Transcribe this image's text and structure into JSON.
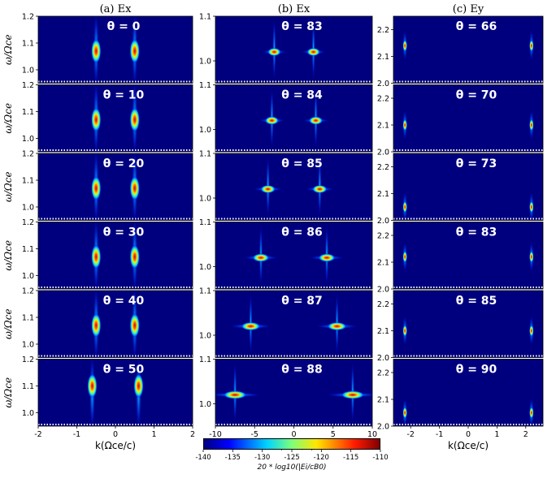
{
  "colors": {
    "background": "#00007f",
    "hot": "#b0101a"
  },
  "colorbar": {
    "ticks": [
      "-140",
      "-135",
      "-130",
      "-125",
      "-120",
      "-115",
      "-110"
    ],
    "label": "20 * log10(|Ei/cB0)"
  },
  "chart_data": [
    {
      "type": "heatmap",
      "title": "(a) Ex",
      "xlabel": "k(Ωce/c)",
      "ylabel": "ω/Ωce",
      "xlim": [
        -2,
        2
      ],
      "ylim": [
        0.95,
        1.2
      ],
      "xticks": [
        "-2",
        "-1",
        "0",
        "1",
        "2"
      ],
      "yticks": [
        "1.0",
        "1.1",
        "1.2"
      ],
      "ytick_values": [
        1.0,
        1.1,
        1.2
      ],
      "panels": [
        {
          "theta": "0",
          "label": "θ = 0",
          "peaks": [
            {
              "k": -0.5,
              "omega": 1.07
            },
            {
              "k": 0.5,
              "omega": 1.07
            }
          ]
        },
        {
          "theta": "10",
          "label": "θ = 10",
          "peaks": [
            {
              "k": -0.5,
              "omega": 1.07
            },
            {
              "k": 0.5,
              "omega": 1.07
            }
          ]
        },
        {
          "theta": "20",
          "label": "θ = 20",
          "peaks": [
            {
              "k": -0.5,
              "omega": 1.07
            },
            {
              "k": 0.5,
              "omega": 1.07
            }
          ]
        },
        {
          "theta": "30",
          "label": "θ = 30",
          "peaks": [
            {
              "k": -0.5,
              "omega": 1.07
            },
            {
              "k": 0.5,
              "omega": 1.07
            }
          ]
        },
        {
          "theta": "40",
          "label": "θ = 40",
          "peaks": [
            {
              "k": -0.5,
              "omega": 1.07
            },
            {
              "k": 0.5,
              "omega": 1.07
            }
          ]
        },
        {
          "theta": "50",
          "label": "θ = 50",
          "peaks": [
            {
              "k": -0.6,
              "omega": 1.1
            },
            {
              "k": 0.6,
              "omega": 1.1
            }
          ]
        }
      ]
    },
    {
      "type": "heatmap",
      "title": "(b) Ex",
      "xlabel": "k(Ωce/c)",
      "ylabel": "",
      "xlim": [
        -10,
        10
      ],
      "ylim": [
        0.95,
        1.1
      ],
      "xticks": [
        "-10",
        "-5",
        "0",
        "5",
        "10"
      ],
      "yticks": [
        "1.0",
        "1.1"
      ],
      "ytick_values": [
        1.0,
        1.1
      ],
      "panels": [
        {
          "theta": "83",
          "label": "θ = 83",
          "peaks": [
            {
              "k": -2.5,
              "omega": 1.02
            },
            {
              "k": 2.5,
              "omega": 1.02
            }
          ]
        },
        {
          "theta": "84",
          "label": "θ = 84",
          "peaks": [
            {
              "k": -2.8,
              "omega": 1.02
            },
            {
              "k": 2.8,
              "omega": 1.02
            }
          ]
        },
        {
          "theta": "85",
          "label": "θ = 85",
          "peaks": [
            {
              "k": -3.3,
              "omega": 1.02
            },
            {
              "k": 3.3,
              "omega": 1.02
            }
          ]
        },
        {
          "theta": "86",
          "label": "θ = 86",
          "peaks": [
            {
              "k": -4.2,
              "omega": 1.02
            },
            {
              "k": 4.2,
              "omega": 1.02
            }
          ]
        },
        {
          "theta": "87",
          "label": "θ = 87",
          "peaks": [
            {
              "k": -5.5,
              "omega": 1.02
            },
            {
              "k": 5.5,
              "omega": 1.02
            }
          ]
        },
        {
          "theta": "88",
          "label": "θ = 88",
          "peaks": [
            {
              "k": -7.5,
              "omega": 1.02
            },
            {
              "k": 7.5,
              "omega": 1.02
            }
          ]
        }
      ]
    },
    {
      "type": "heatmap",
      "title": "(c) Ey",
      "xlabel": "k(Ωce/c)",
      "ylabel": "",
      "xlim": [
        -2.6,
        2.6
      ],
      "ylim": [
        2.0,
        2.25
      ],
      "xticks": [
        "-2",
        "-1",
        "0",
        "1",
        "2"
      ],
      "xtick_values": [
        -2,
        -1,
        0,
        1,
        2
      ],
      "yticks": [
        "2.0",
        "2.1",
        "2.2"
      ],
      "ytick_values": [
        2.0,
        2.1,
        2.2
      ],
      "panels": [
        {
          "theta": "66",
          "label": "θ = 66",
          "peaks": [
            {
              "k": -2.2,
              "omega": 2.14
            },
            {
              "k": 2.2,
              "omega": 2.14
            }
          ]
        },
        {
          "theta": "70",
          "label": "θ = 70",
          "peaks": [
            {
              "k": -2.2,
              "omega": 2.1
            },
            {
              "k": 2.2,
              "omega": 2.1
            }
          ]
        },
        {
          "theta": "73",
          "label": "θ = 73",
          "peaks": [
            {
              "k": -2.2,
              "omega": 2.05
            },
            {
              "k": 2.2,
              "omega": 2.05
            }
          ]
        },
        {
          "theta": "83",
          "label": "θ = 83",
          "peaks": [
            {
              "k": -2.2,
              "omega": 2.12
            },
            {
              "k": 2.2,
              "omega": 2.12
            }
          ]
        },
        {
          "theta": "85",
          "label": "θ = 85",
          "peaks": [
            {
              "k": -2.2,
              "omega": 2.1
            },
            {
              "k": 2.2,
              "omega": 2.1
            }
          ]
        },
        {
          "theta": "90",
          "label": "θ = 90",
          "peaks": [
            {
              "k": -2.2,
              "omega": 2.05
            },
            {
              "k": 2.2,
              "omega": 2.05
            }
          ]
        }
      ]
    }
  ]
}
